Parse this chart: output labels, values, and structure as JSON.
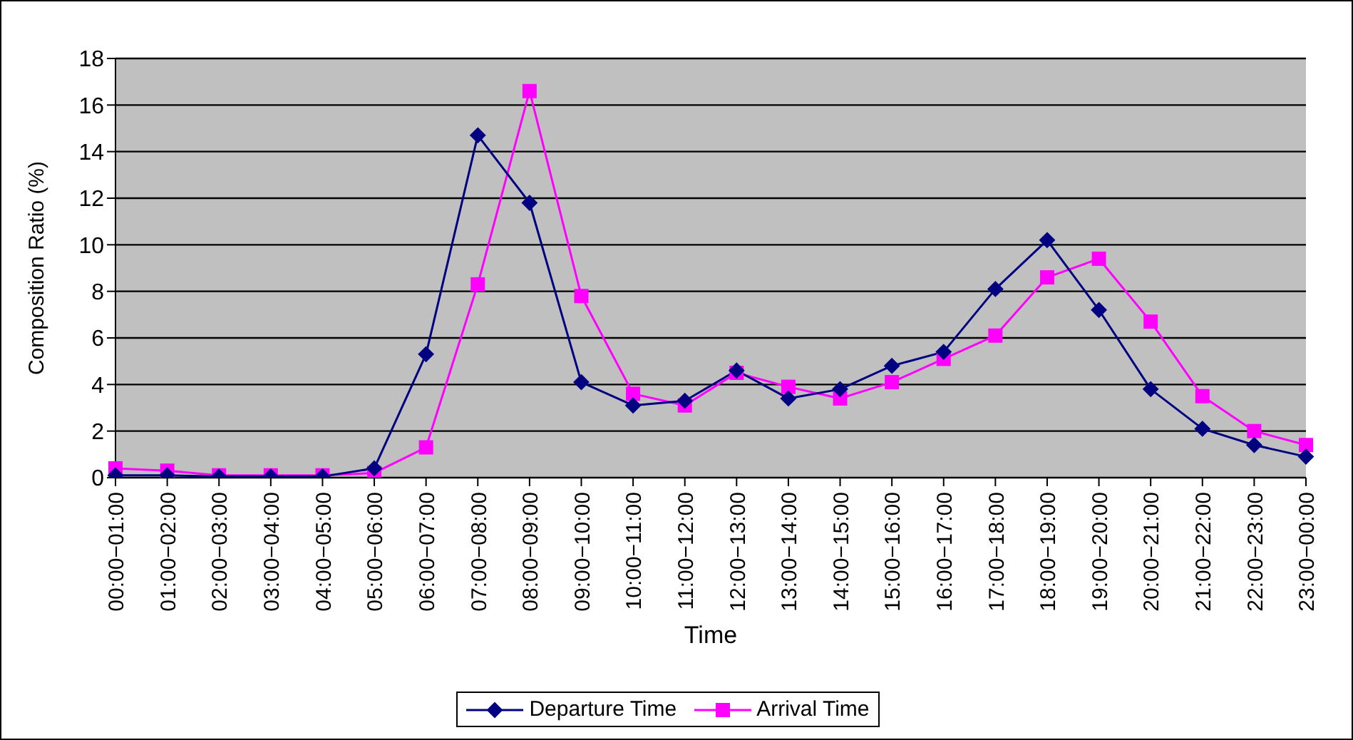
{
  "chart_data": {
    "type": "line",
    "xlabel": "Time",
    "ylabel": "Composition Ratio (%)",
    "categories": [
      "00:00−01:00",
      "01:00−02:00",
      "02:00−03:00",
      "03:00−04:00",
      "04:00−05:00",
      "05:00−06:00",
      "06:00−07:00",
      "07:00−08:00",
      "08:00−09:00",
      "09:00−10:00",
      "10:00−11:00",
      "11:00−12:00",
      "12:00−13:00",
      "13:00−14:00",
      "14:00−15:00",
      "15:00−16:00",
      "16:00−17:00",
      "17:00−18:00",
      "18:00−19:00",
      "19:00−20:00",
      "20:00−21:00",
      "21:00−22:00",
      "22:00−23:00",
      "23:00−00:00"
    ],
    "series": [
      {
        "name": "Departure Time",
        "color": "#000080",
        "marker": "diamond",
        "values": [
          0.1,
          0.1,
          0.05,
          0.05,
          0.05,
          0.4,
          5.3,
          14.7,
          11.8,
          4.1,
          3.1,
          3.3,
          4.6,
          3.4,
          3.8,
          4.8,
          5.4,
          8.1,
          10.2,
          7.2,
          3.8,
          2.1,
          1.4,
          0.9
        ]
      },
      {
        "name": "Arrival Time",
        "color": "#ff00ff",
        "marker": "square",
        "values": [
          0.4,
          0.3,
          0.1,
          0.1,
          0.1,
          0.2,
          1.3,
          8.3,
          16.6,
          7.8,
          3.6,
          3.1,
          4.5,
          3.9,
          3.4,
          4.1,
          5.1,
          6.1,
          8.6,
          9.4,
          6.7,
          3.5,
          2.0,
          1.4
        ]
      }
    ],
    "ylim": [
      0,
      18
    ],
    "yticks": [
      0,
      2,
      4,
      6,
      8,
      10,
      12,
      14,
      16,
      18
    ],
    "grid": "y",
    "legend": "bottom"
  }
}
